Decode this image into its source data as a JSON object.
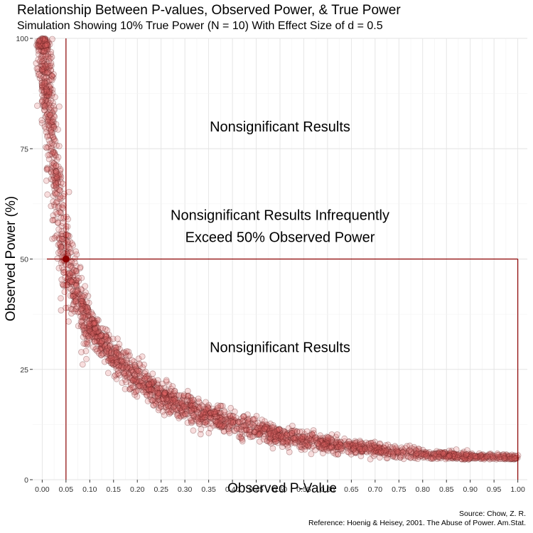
{
  "chart_data": {
    "type": "scatter",
    "title": "Relationship Between P-values, Observed Power, & True Power",
    "subtitle": "Simulation Showing 10% True Power (N = 10) With Effect Size of d = 0.5",
    "xlabel": "Observed P-Value",
    "ylabel": "Observed Power (%)",
    "xlim": [
      -0.02,
      1.02
    ],
    "ylim": [
      0,
      100
    ],
    "x_ticks": [
      "0.00",
      "0.05",
      "0.10",
      "0.15",
      "0.20",
      "0.25",
      "0.30",
      "0.35",
      "0.40",
      "0.45",
      "0.50",
      "0.55",
      "0.60",
      "0.65",
      "0.70",
      "0.75",
      "0.80",
      "0.85",
      "0.90",
      "0.95",
      "1.00"
    ],
    "y_ticks": [
      "0",
      "25",
      "50",
      "75",
      "100"
    ],
    "grid": true,
    "point_color": "#e06666",
    "line_color": "#8b0000",
    "series": [
      {
        "curve": [
          {
            "x": 0.0,
            "y": 100
          },
          {
            "x": 0.01,
            "y": 88
          },
          {
            "x": 0.02,
            "y": 78
          },
          {
            "x": 0.03,
            "y": 66
          },
          {
            "x": 0.04,
            "y": 58
          },
          {
            "x": 0.05,
            "y": 50
          },
          {
            "x": 0.06,
            "y": 46
          },
          {
            "x": 0.08,
            "y": 40
          },
          {
            "x": 0.1,
            "y": 35
          },
          {
            "x": 0.15,
            "y": 28
          },
          {
            "x": 0.2,
            "y": 23
          },
          {
            "x": 0.25,
            "y": 19
          },
          {
            "x": 0.3,
            "y": 16.5
          },
          {
            "x": 0.35,
            "y": 14.5
          },
          {
            "x": 0.4,
            "y": 13
          },
          {
            "x": 0.45,
            "y": 11.5
          },
          {
            "x": 0.5,
            "y": 10
          },
          {
            "x": 0.55,
            "y": 9
          },
          {
            "x": 0.6,
            "y": 8
          },
          {
            "x": 0.65,
            "y": 7.3
          },
          {
            "x": 0.7,
            "y": 6.8
          },
          {
            "x": 0.75,
            "y": 6.2
          },
          {
            "x": 0.8,
            "y": 5.8
          },
          {
            "x": 0.85,
            "y": 5.5
          },
          {
            "x": 0.9,
            "y": 5.2
          },
          {
            "x": 0.95,
            "y": 5.1
          },
          {
            "x": 1.0,
            "y": 5.0
          }
        ]
      }
    ],
    "reference_lines": {
      "vertical_x": 0.05,
      "horizontal_y": 50,
      "box_right_x": 1.0
    },
    "highlight_point": {
      "x": 0.05,
      "y": 50
    },
    "annotations": [
      {
        "text": "Nonsignificant Results",
        "x": 0.5,
        "y": 80
      },
      {
        "text": "Nonsignificant Results Infrequently",
        "x": 0.5,
        "y": 60
      },
      {
        "text": "Exceed 50% Observed Power",
        "x": 0.5,
        "y": 55
      },
      {
        "text": "Nonsignificant Results",
        "x": 0.5,
        "y": 30
      }
    ],
    "caption": [
      "Source: Chow, Z. R.",
      "Reference: Hoenig & Heisey, 2001. The Abuse of Power. Am.Stat."
    ]
  }
}
